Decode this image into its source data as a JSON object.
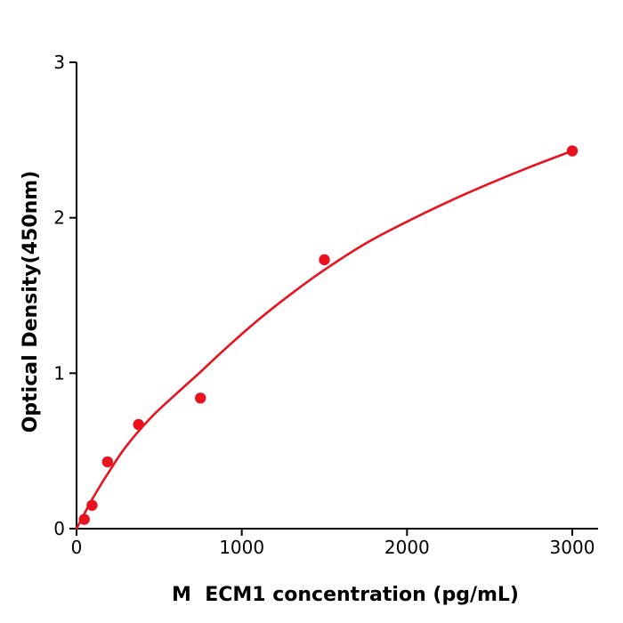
{
  "chart_data": {
    "type": "scatter",
    "title": "",
    "xlabel": "M  ECM1 concentration (pg/mL)",
    "ylabel": "Optical Density(450nm)",
    "xlim": [
      0,
      3000
    ],
    "ylim": [
      0,
      3
    ],
    "x_ticks": [
      0,
      1000,
      2000,
      3000
    ],
    "y_ticks": [
      0,
      1,
      2,
      3
    ],
    "grid": false,
    "legend": false,
    "colors": {
      "series_red": "#e8131e",
      "axis_black": "#000000",
      "background": "#ffffff"
    },
    "series": [
      {
        "name": "standard-data-points",
        "kind": "scatter",
        "color": "#e8131e",
        "points": [
          [
            46.88,
            0.06
          ],
          [
            93.75,
            0.15
          ],
          [
            187.5,
            0.43
          ],
          [
            375,
            0.67
          ],
          [
            750,
            0.84
          ],
          [
            1500,
            1.73
          ],
          [
            3000,
            2.43
          ]
        ]
      },
      {
        "name": "fitted-standard-curve",
        "kind": "line",
        "color": "#e8131e",
        "points": [
          [
            0,
            0.0
          ],
          [
            100,
            0.199
          ],
          [
            200,
            0.372
          ],
          [
            300,
            0.529
          ],
          [
            450,
            0.714
          ],
          [
            600,
            0.864
          ],
          [
            750,
            1.008
          ],
          [
            900,
            1.157
          ],
          [
            1100,
            1.343
          ],
          [
            1300,
            1.511
          ],
          [
            1500,
            1.665
          ],
          [
            1750,
            1.835
          ],
          [
            2000,
            1.975
          ],
          [
            2250,
            2.103
          ],
          [
            2500,
            2.22
          ],
          [
            2750,
            2.329
          ],
          [
            3000,
            2.43
          ]
        ]
      }
    ]
  }
}
